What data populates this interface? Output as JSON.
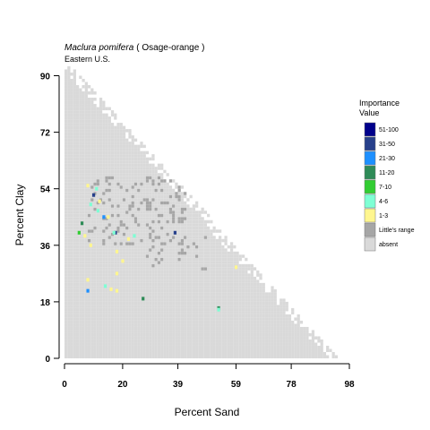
{
  "chart_data": {
    "type": "heatmap",
    "title_species": "Maclura pomifera",
    "title_common": "( Osage-orange )",
    "subtitle": "Eastern U.S.",
    "xlabel": "Percent Sand",
    "ylabel": "Percent Clay",
    "xlim": [
      0,
      98
    ],
    "ylim": [
      0,
      93
    ],
    "x_ticks": [
      "0",
      "20",
      "39",
      "59",
      "78",
      "98"
    ],
    "x_tick_values": [
      0,
      20,
      39,
      59,
      78,
      98
    ],
    "y_ticks": [
      "0",
      "18",
      "36",
      "54",
      "72",
      "90"
    ],
    "y_tick_values": [
      0,
      18,
      36,
      54,
      72,
      90
    ],
    "grid": false,
    "legend_title": [
      "Importance",
      "Value"
    ],
    "legend_placement": "right",
    "legend": [
      {
        "label": "51-100",
        "color": "#00008b"
      },
      {
        "label": "31-50",
        "color": "#27408b"
      },
      {
        "label": "21-30",
        "color": "#1e90ff"
      },
      {
        "label": "11-20",
        "color": "#2e8b57"
      },
      {
        "label": "7-10",
        "color": "#32cd32"
      },
      {
        "label": "4-6",
        "color": "#7fffd4"
      },
      {
        "label": "1-3",
        "color": "#fff68f"
      },
      {
        "label": "Little's range",
        "color": "#a6a6a6"
      },
      {
        "label": "absent",
        "color": "#d9d9d9"
      }
    ],
    "points": [
      {
        "x": 10,
        "y": 52,
        "category": "31-50"
      },
      {
        "x": 38,
        "y": 40,
        "category": "31-50"
      },
      {
        "x": 17.5,
        "y": 40,
        "category": "31-50"
      },
      {
        "x": 13.5,
        "y": 45,
        "category": "21-30"
      },
      {
        "x": 8,
        "y": 21.5,
        "category": "21-30"
      },
      {
        "x": 6,
        "y": 43,
        "category": "11-20"
      },
      {
        "x": 27,
        "y": 19,
        "category": "11-20"
      },
      {
        "x": 53,
        "y": 16,
        "category": "11-20"
      },
      {
        "x": 5,
        "y": 40,
        "category": "7-10"
      },
      {
        "x": 11,
        "y": 54,
        "category": "4-6"
      },
      {
        "x": 9,
        "y": 49,
        "category": "4-6"
      },
      {
        "x": 24,
        "y": 39,
        "category": "4-6"
      },
      {
        "x": 17,
        "y": 40,
        "category": "4-6"
      },
      {
        "x": 14,
        "y": 23,
        "category": "4-6"
      },
      {
        "x": 11.5,
        "y": 47,
        "category": "4-6"
      },
      {
        "x": 53,
        "y": 15.5,
        "category": "4-6"
      },
      {
        "x": 8,
        "y": 55,
        "category": "1-3"
      },
      {
        "x": 12,
        "y": 50,
        "category": "1-3"
      },
      {
        "x": 7,
        "y": 39,
        "category": "1-3"
      },
      {
        "x": 9,
        "y": 36,
        "category": "1-3"
      },
      {
        "x": 18,
        "y": 34,
        "category": "1-3"
      },
      {
        "x": 20,
        "y": 31,
        "category": "1-3"
      },
      {
        "x": 18,
        "y": 27,
        "category": "1-3"
      },
      {
        "x": 8,
        "y": 25,
        "category": "1-3"
      },
      {
        "x": 16,
        "y": 22,
        "category": "1-3"
      },
      {
        "x": 18,
        "y": 21.5,
        "category": "1-3"
      },
      {
        "x": 59,
        "y": 29,
        "category": "1-3"
      },
      {
        "x": 22,
        "y": 38,
        "category": "1-3"
      },
      {
        "x": 15,
        "y": 45,
        "category": "1-3"
      }
    ]
  }
}
